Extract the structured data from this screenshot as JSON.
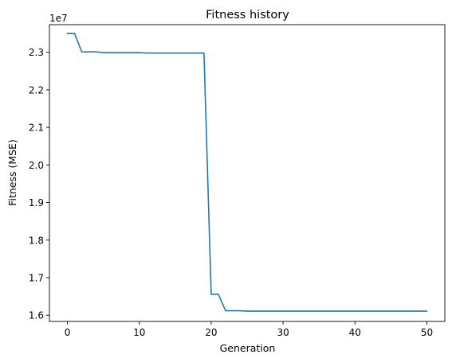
{
  "chart_data": {
    "type": "line",
    "title": "Fitness history",
    "xlabel": "Generation",
    "ylabel": "Fitness (MSE)",
    "y_offset_label": "1e7",
    "xlim": [
      -2.5,
      52.5
    ],
    "ylim": [
      1.5835,
      2.3735
    ],
    "x_ticks": [
      0,
      10,
      20,
      30,
      40,
      50
    ],
    "x_tick_labels": [
      "0",
      "10",
      "20",
      "30",
      "40",
      "50"
    ],
    "y_ticks": [
      1.6,
      1.7,
      1.8,
      1.9,
      2.0,
      2.1,
      2.2,
      2.3
    ],
    "y_tick_labels": [
      "1.6",
      "1.7",
      "1.8",
      "1.9",
      "2.0",
      "2.1",
      "2.2",
      "2.3"
    ],
    "grid": false,
    "line_color": "#1f77b4",
    "x": [
      0,
      1,
      2,
      3,
      4,
      5,
      6,
      7,
      8,
      9,
      10,
      11,
      12,
      13,
      14,
      15,
      16,
      17,
      18,
      19,
      20,
      21,
      22,
      23,
      24,
      25,
      26,
      27,
      28,
      29,
      30,
      31,
      32,
      33,
      34,
      35,
      36,
      37,
      38,
      39,
      40,
      41,
      42,
      43,
      44,
      45,
      46,
      47,
      48,
      49,
      50
    ],
    "values": [
      2.35,
      2.35,
      2.301,
      2.301,
      2.301,
      2.299,
      2.299,
      2.299,
      2.299,
      2.299,
      2.299,
      2.298,
      2.298,
      2.298,
      2.298,
      2.298,
      2.298,
      2.298,
      2.298,
      2.298,
      1.656,
      1.656,
      1.612,
      1.612,
      1.612,
      1.611,
      1.611,
      1.611,
      1.611,
      1.611,
      1.611,
      1.611,
      1.611,
      1.611,
      1.611,
      1.611,
      1.611,
      1.611,
      1.611,
      1.611,
      1.611,
      1.611,
      1.611,
      1.611,
      1.611,
      1.611,
      1.611,
      1.611,
      1.611,
      1.611,
      1.611
    ]
  }
}
